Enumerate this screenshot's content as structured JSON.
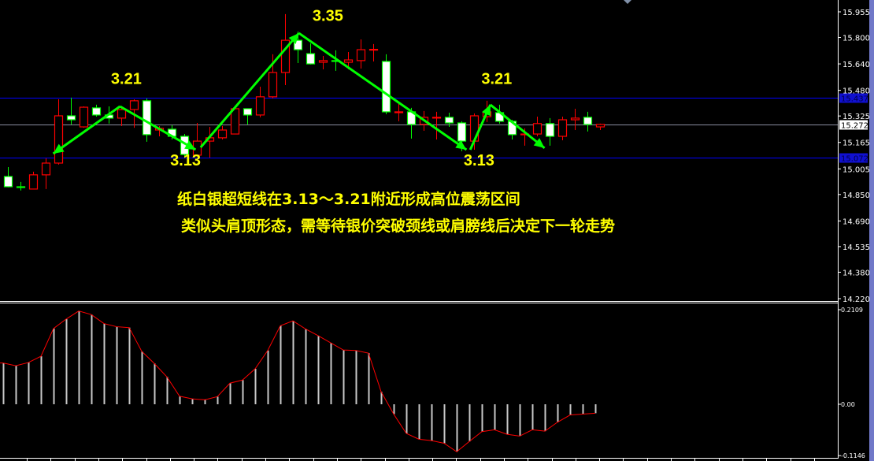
{
  "chart_data": [
    {
      "type": "candlestick",
      "ohlc_order": [
        "open",
        "high",
        "low",
        "close"
      ],
      "candles": [
        [
          14.959,
          15.016,
          14.893,
          14.897
        ],
        [
          14.897,
          14.926,
          14.874,
          14.895
        ],
        [
          14.883,
          14.988,
          14.883,
          14.969
        ],
        [
          14.969,
          15.069,
          14.883,
          15.04
        ],
        [
          15.04,
          15.426,
          15.031,
          15.326
        ],
        [
          15.326,
          15.436,
          15.274,
          15.302
        ],
        [
          15.259,
          15.383,
          15.254,
          15.378
        ],
        [
          15.374,
          15.393,
          15.321,
          15.331
        ],
        [
          15.331,
          15.383,
          15.279,
          15.312
        ],
        [
          15.312,
          15.378,
          15.264,
          15.364
        ],
        [
          15.364,
          15.426,
          15.254,
          15.417
        ],
        [
          15.417,
          15.431,
          15.169,
          15.212
        ],
        [
          15.24,
          15.264,
          15.202,
          15.25
        ],
        [
          15.245,
          15.269,
          15.183,
          15.202
        ],
        [
          15.202,
          15.216,
          15.083,
          15.092
        ],
        [
          15.088,
          15.283,
          15.083,
          15.173
        ],
        [
          15.173,
          15.259,
          15.073,
          15.193
        ],
        [
          15.193,
          15.264,
          15.183,
          15.24
        ],
        [
          15.216,
          15.388,
          15.216,
          15.369
        ],
        [
          15.369,
          15.369,
          15.274,
          15.331
        ],
        [
          15.331,
          15.502,
          15.317,
          15.441
        ],
        [
          15.441,
          15.698,
          15.431,
          15.588
        ],
        [
          15.588,
          15.941,
          15.512,
          15.783
        ],
        [
          15.783,
          15.836,
          15.645,
          15.726
        ],
        [
          15.702,
          15.764,
          15.636,
          15.64
        ],
        [
          15.65,
          15.688,
          15.607,
          15.66
        ],
        [
          15.66,
          15.722,
          15.598,
          15.655
        ],
        [
          15.65,
          15.712,
          15.607,
          15.664
        ],
        [
          15.66,
          15.788,
          15.612,
          15.726
        ],
        [
          15.726,
          15.76,
          15.655,
          15.728
        ],
        [
          15.655,
          15.698,
          15.336,
          15.35
        ],
        [
          15.345,
          15.398,
          15.293,
          15.35
        ],
        [
          15.35,
          15.374,
          15.188,
          15.274
        ],
        [
          15.274,
          15.355,
          15.235,
          15.317
        ],
        [
          15.317,
          15.35,
          15.183,
          15.317
        ],
        [
          15.317,
          15.345,
          15.259,
          15.283
        ],
        [
          15.283,
          15.293,
          15.112,
          15.173
        ],
        [
          15.173,
          15.34,
          15.121,
          15.326
        ],
        [
          15.321,
          15.417,
          15.288,
          15.35
        ],
        [
          15.345,
          15.393,
          15.279,
          15.293
        ],
        [
          15.293,
          15.302,
          15.183,
          15.212
        ],
        [
          15.216,
          15.25,
          15.145,
          15.216
        ],
        [
          15.216,
          15.321,
          15.202,
          15.279
        ],
        [
          15.279,
          15.312,
          15.145,
          15.202
        ],
        [
          15.202,
          15.321,
          15.178,
          15.302
        ],
        [
          15.302,
          15.369,
          15.24,
          15.312
        ],
        [
          15.317,
          15.35,
          15.231,
          15.274
        ],
        [
          15.259,
          15.279,
          15.24,
          15.274
        ]
      ],
      "ylim": [
        14.22,
        15.955
      ],
      "y_ticks": [
        "15.955",
        "15.800",
        "15.640",
        "15.480",
        "15.325",
        "15.165",
        "15.005",
        "14.850",
        "14.690",
        "14.535",
        "14.380",
        "14.220"
      ],
      "horizontal_lines": [
        {
          "value": 15.437,
          "label": "15.437",
          "color": "#0000ff"
        },
        {
          "value": 15.272,
          "label": "15.272",
          "color": "#8a8ea0"
        },
        {
          "value": 15.072,
          "label": "15.072",
          "color": "#0000ff"
        }
      ],
      "colors": {
        "up": "#ff0000",
        "down_border": "#00ff00",
        "down_fill": "#ffffff",
        "arrow": "#00ff00",
        "annotation": "#ffff00"
      },
      "arrows": [
        {
          "from": [
            8.9,
            15.383
          ],
          "to": [
            3.6,
            15.097
          ]
        },
        {
          "from": [
            8.9,
            15.383
          ],
          "to": [
            14.9,
            15.121
          ]
        },
        {
          "from": [
            15.3,
            15.135
          ],
          "to": [
            23.1,
            15.826
          ]
        },
        {
          "from": [
            23.1,
            15.826
          ],
          "to": [
            36.4,
            15.121
          ]
        },
        {
          "from": [
            36.7,
            15.121
          ],
          "to": [
            38.3,
            15.393
          ]
        },
        {
          "from": [
            38.3,
            15.393
          ],
          "to": [
            42.6,
            15.131
          ]
        }
      ],
      "annotations": [
        {
          "text": "3.21",
          "at": [
            9.4,
            15.518
          ]
        },
        {
          "text": "3.13",
          "at": [
            14.1,
            15.025
          ]
        },
        {
          "text": "3.35",
          "at": [
            25.4,
            15.9
          ]
        },
        {
          "text": "3.21",
          "at": [
            38.8,
            15.518
          ]
        },
        {
          "text": "3.13",
          "at": [
            37.4,
            15.025
          ]
        }
      ],
      "notes": [
        "纸白银超短线在3.13～3.21附近形成高位震荡区间",
        "类似头肩顶形态，需等待银价突破颈线或肩膀线后决定下一轮走势"
      ]
    },
    {
      "type": "bar",
      "values": [
        0.092,
        0.086,
        0.093,
        0.107,
        0.169,
        0.19,
        0.208,
        0.2,
        0.18,
        0.173,
        0.171,
        0.118,
        0.091,
        0.061,
        0.018,
        0.012,
        0.01,
        0.017,
        0.047,
        0.054,
        0.079,
        0.12,
        0.175,
        0.186,
        0.168,
        0.153,
        0.137,
        0.121,
        0.12,
        0.114,
        0.028,
        -0.022,
        -0.065,
        -0.078,
        -0.081,
        -0.087,
        -0.106,
        -0.083,
        -0.061,
        -0.057,
        -0.067,
        -0.071,
        -0.057,
        -0.06,
        -0.04,
        -0.024,
        -0.022,
        -0.02
      ],
      "ylim": [
        -0.1146,
        0.2109
      ],
      "y_ticks": [
        "0.2109",
        "0.00",
        "-0.1146"
      ],
      "colors": {
        "bar": "#c8c8c8",
        "line": "#ff0000"
      }
    }
  ]
}
